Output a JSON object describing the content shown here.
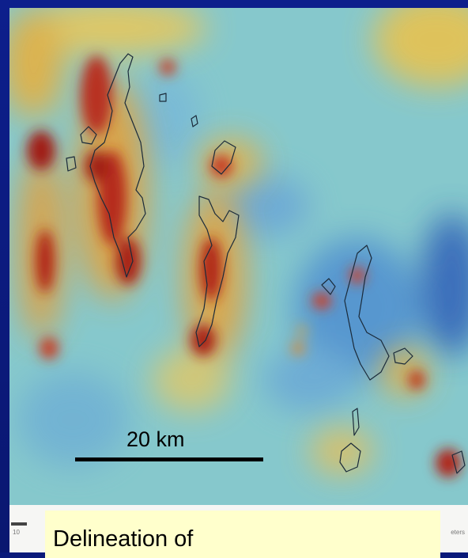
{
  "map": {
    "scale_label": "20 km",
    "colors": {
      "background": "#7ec6d0",
      "low": "#2f73c8",
      "high": "#c82010",
      "mid": "#f2d24a",
      "frame": "#0a1a7a"
    }
  },
  "caption": {
    "text": "Delineation of"
  },
  "strip": {
    "left_text": "10",
    "right_text": "eters"
  }
}
